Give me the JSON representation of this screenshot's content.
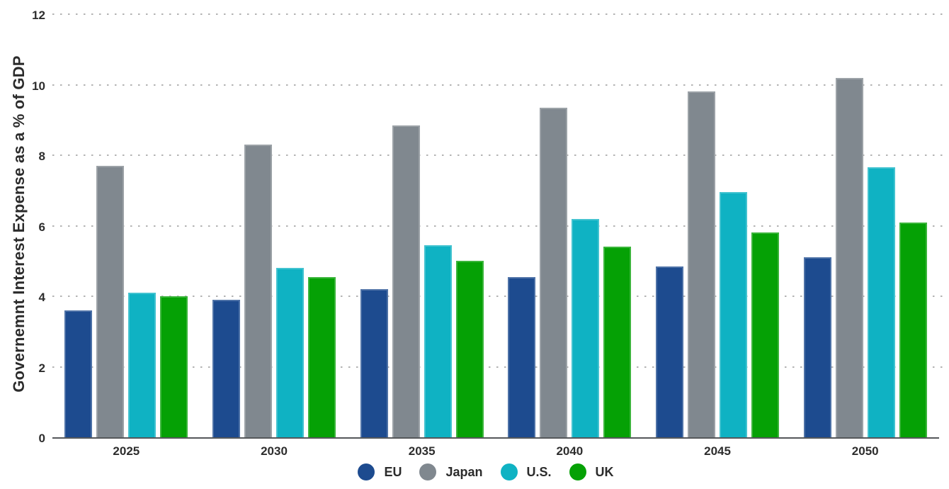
{
  "chart_data": {
    "type": "bar",
    "ylabel": "Governemnt Interest Expense as a % of GDP",
    "xlabel": "",
    "categories": [
      "2025",
      "2030",
      "2035",
      "2040",
      "2045",
      "2050"
    ],
    "series": [
      {
        "name": "EU",
        "color": "#1d4b8f",
        "values": [
          3.6,
          3.9,
          4.2,
          4.55,
          4.85,
          5.1
        ]
      },
      {
        "name": "Japan",
        "color": "#80888f",
        "values": [
          7.7,
          8.3,
          8.85,
          9.35,
          9.8,
          10.2
        ]
      },
      {
        "name": "U.S.",
        "color": "#0fb2c3",
        "values": [
          4.1,
          4.8,
          5.45,
          6.2,
          6.95,
          7.65
        ]
      },
      {
        "name": "UK",
        "color": "#05a105",
        "values": [
          4.0,
          4.55,
          5.0,
          5.4,
          5.8,
          6.1
        ]
      }
    ],
    "ylim": [
      0,
      12
    ],
    "yticks": [
      0,
      2,
      4,
      6,
      8,
      10,
      12
    ],
    "grid": "horizontal-dotted",
    "legend_position": "bottom"
  },
  "style": {
    "background": "#ffffff",
    "grid_color": "#b3b3b3",
    "axis_line_color": "#55585b",
    "text_color": "#2d2d2d"
  }
}
